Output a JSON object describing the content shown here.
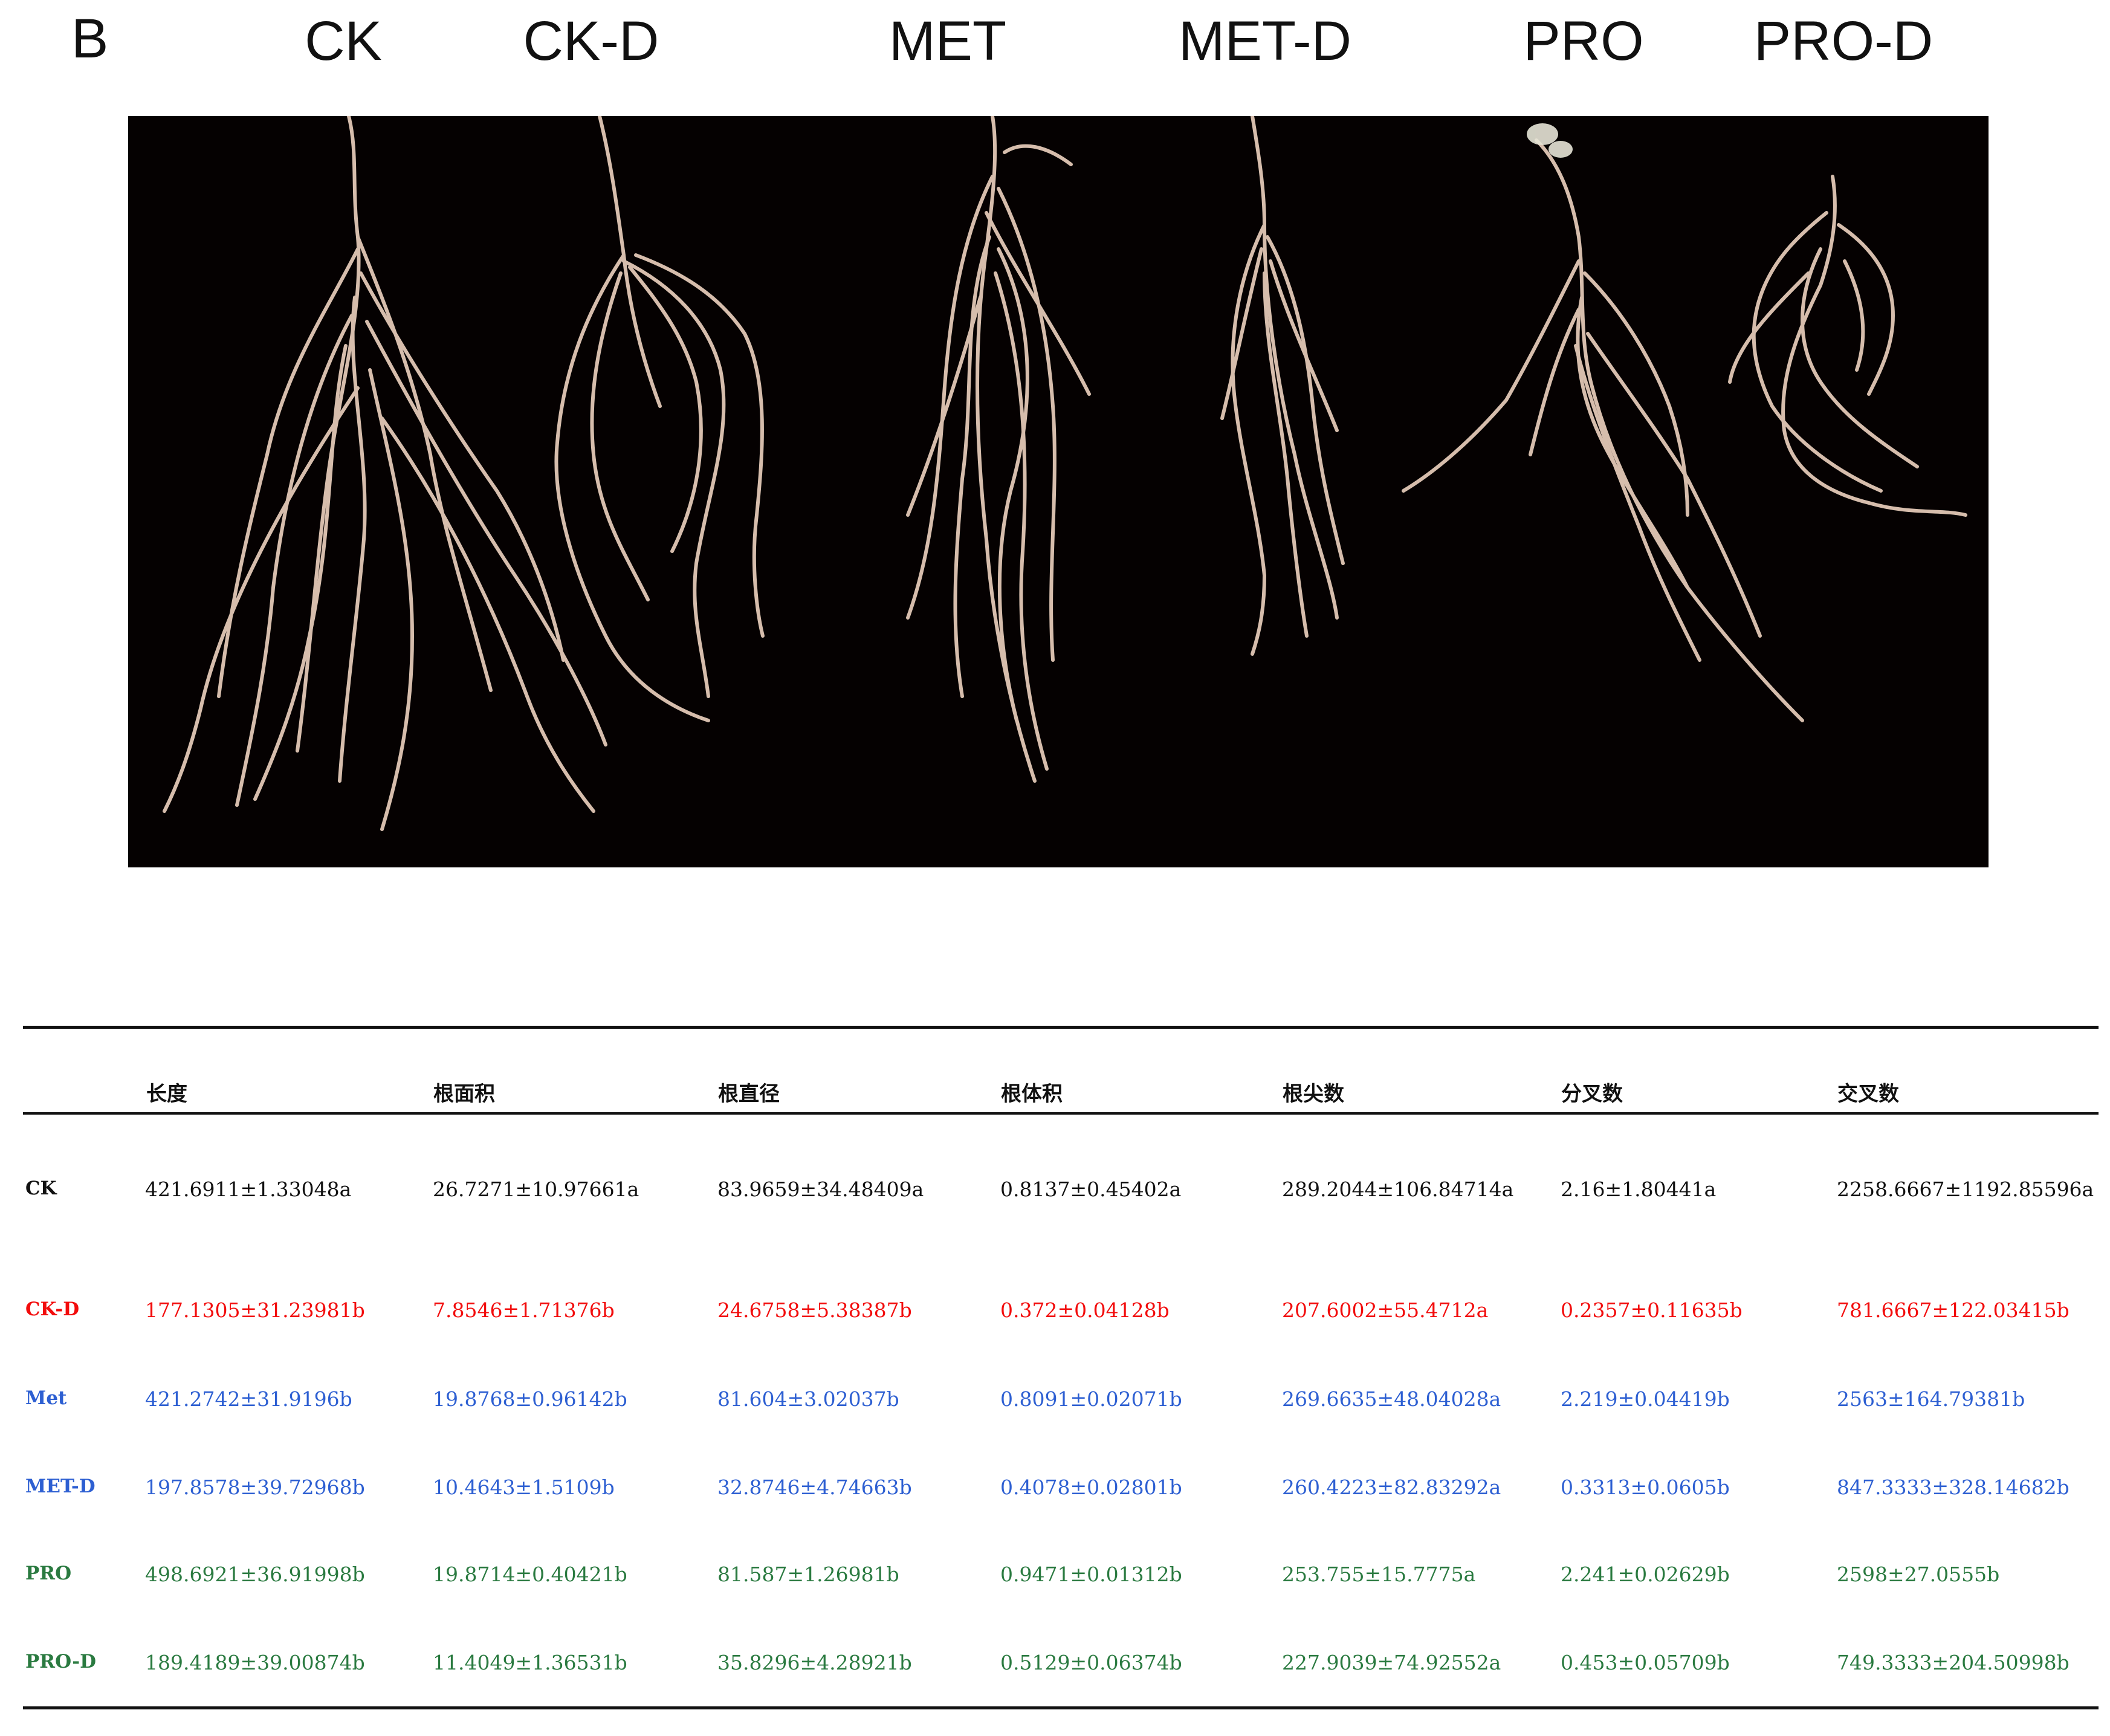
{
  "figure": {
    "panel_letter": "B",
    "column_labels": [
      "CK",
      "CK-D",
      "MET",
      "MET-D",
      "PRO",
      "PRO-D"
    ]
  },
  "colors": {
    "black": "#111111",
    "red": "#f20c0c",
    "blue": "#2d5fd2",
    "green": "#2a7a40",
    "photo_background": "#050101",
    "root": "#e8cdbb"
  },
  "table": {
    "headers": [
      "长度",
      "根面积",
      "根直径",
      "根体积",
      "根尖数",
      "分叉数",
      "交叉数"
    ],
    "rows": [
      {
        "label": "CK",
        "color": "black",
        "values": [
          "421.6911±1.33048a",
          "26.7271±10.97661a",
          "83.9659±34.48409a",
          "0.8137±0.45402a",
          "289.2044±106.84714a",
          "2.16±1.80441a",
          "2258.6667±1192.85596a"
        ]
      },
      {
        "label": "CK-D",
        "color": "red",
        "values": [
          "177.1305±31.23981b",
          "7.8546±1.71376b",
          "24.6758±5.38387b",
          "0.372±0.04128b",
          "207.6002±55.4712a",
          "0.2357±0.11635b",
          "781.6667±122.03415b"
        ]
      },
      {
        "label": "Met",
        "color": "blue",
        "values": [
          "421.2742±31.9196b",
          "19.8768±0.96142b",
          "81.604±3.02037b",
          "0.8091±0.02071b",
          "269.6635±48.04028a",
          "2.219±0.04419b",
          "2563±164.79381b"
        ]
      },
      {
        "label": "MET-D",
        "color": "blue",
        "values": [
          "197.8578±39.72968b",
          "10.4643±1.5109b",
          "32.8746±4.74663b",
          "0.4078±0.02801b",
          "260.4223±82.83292a",
          "0.3313±0.0605b",
          "847.3333±328.14682b"
        ]
      },
      {
        "label": "PRO",
        "color": "green",
        "values": [
          "498.6921±36.91998b",
          "19.8714±0.40421b",
          "81.587±1.26981b",
          "0.9471±0.01312b",
          "253.755±15.7775a",
          "2.241±0.02629b",
          "2598±27.0555b"
        ]
      },
      {
        "label": "PRO-D",
        "color": "green",
        "values": [
          "189.4189±39.00874b",
          "11.4049±1.36531b",
          "35.8296±4.28921b",
          "0.5129±0.06374b",
          "227.9039±74.92552a",
          "0.453±0.05709b",
          "749.3333±204.50998b"
        ]
      }
    ]
  }
}
